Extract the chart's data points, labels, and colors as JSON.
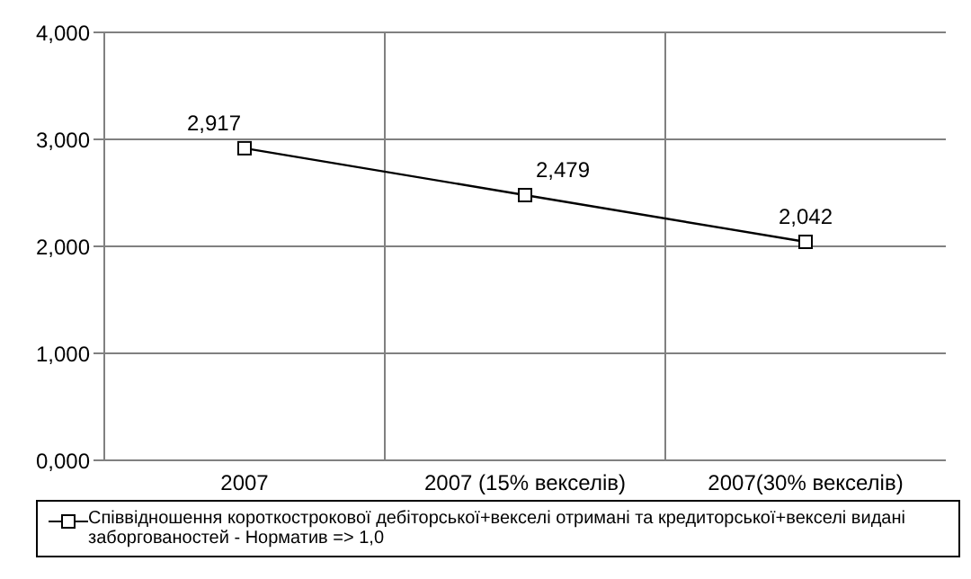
{
  "chart_data": {
    "type": "line",
    "categories": [
      "2007",
      "2007 (15% векселів)",
      "2007(30% векселів)"
    ],
    "series": [
      {
        "name": "Співвідношення короткострокової дебіторської+векселі отримані та кредиторської+векселі видані заборгованостей - Норматив => 1,0",
        "color": "#000000",
        "values": [
          2.917,
          2.479,
          2.042
        ],
        "value_labels": [
          "2,917",
          "2,479",
          "2,042"
        ]
      }
    ],
    "ylim": [
      0,
      4
    ],
    "yticks": [
      {
        "value": 0,
        "label": "0,000"
      },
      {
        "value": 1,
        "label": "1,000"
      },
      {
        "value": 2,
        "label": "2,000"
      },
      {
        "value": 3,
        "label": "3,000"
      },
      {
        "value": 4,
        "label": "4,000"
      }
    ],
    "grid": true,
    "legend": "bottom",
    "marker": "square",
    "line_style": "solid"
  }
}
